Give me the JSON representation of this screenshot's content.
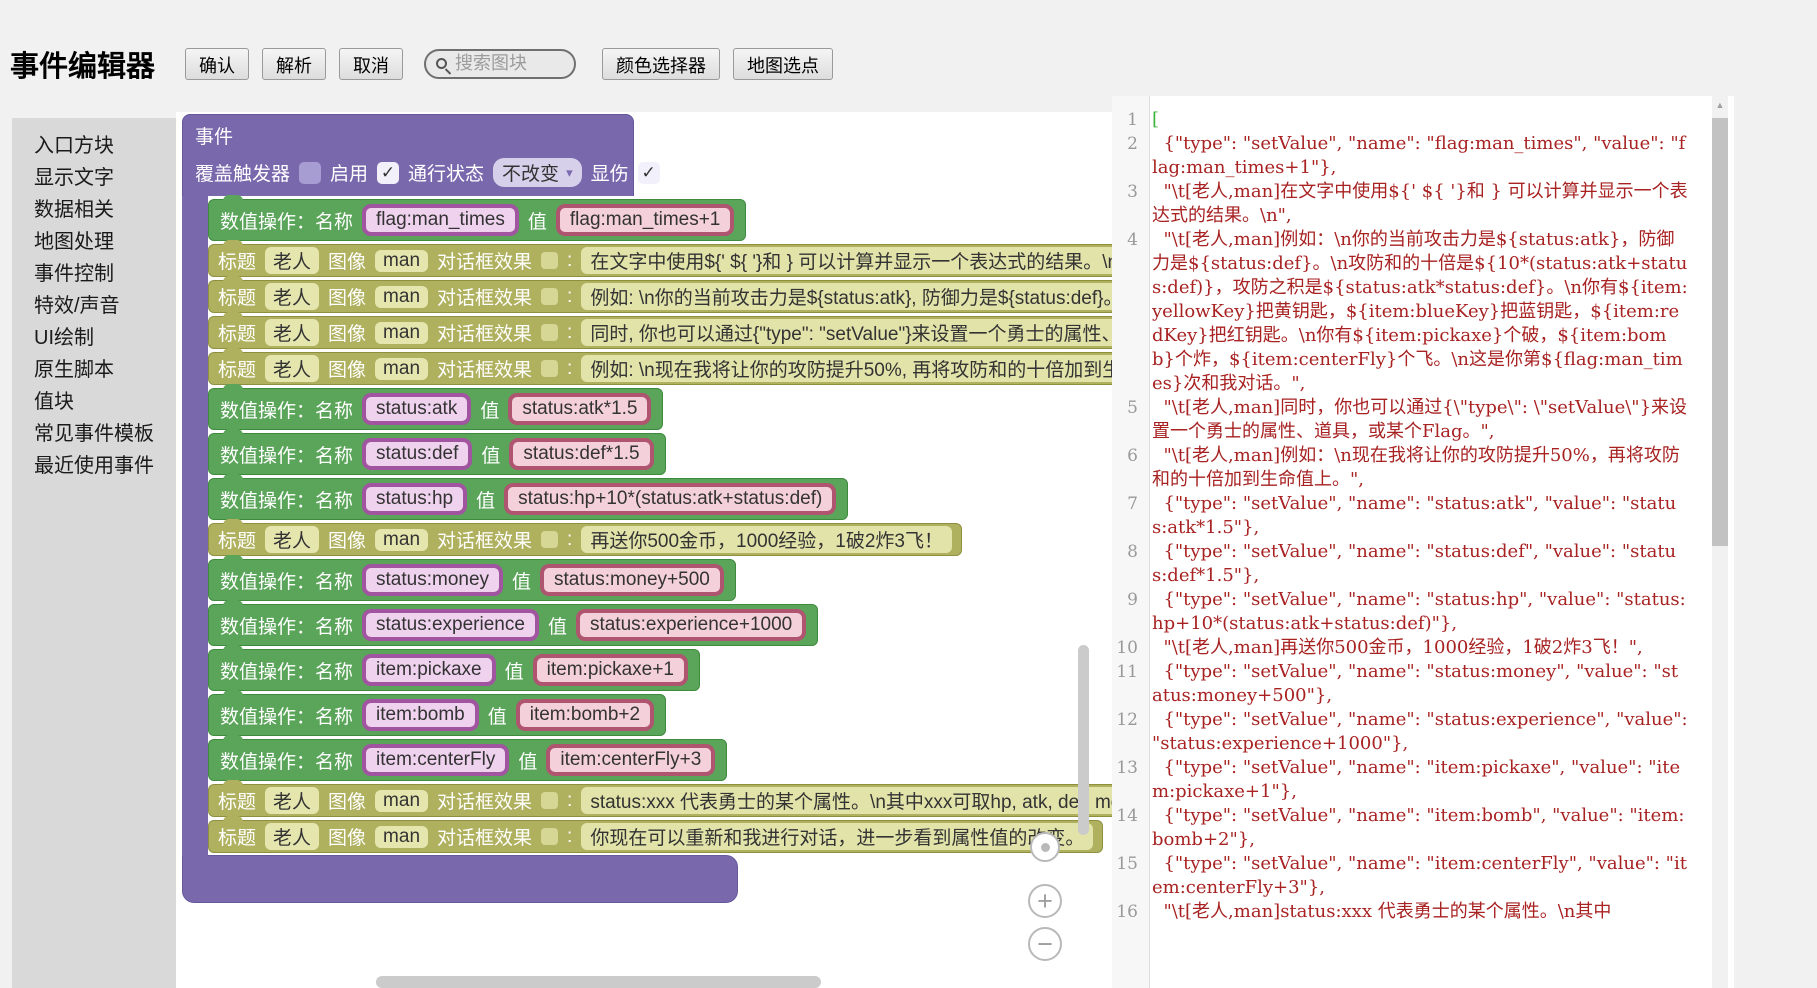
{
  "toolbar": {
    "title": "事件编辑器",
    "confirm": "确认",
    "parse": "解析",
    "cancel": "取消",
    "search_placeholder": "搜索图块",
    "color_picker": "颜色选择器",
    "map_pick": "地图选点"
  },
  "sidebar": {
    "items": [
      "入口方块",
      "显示文字",
      "数据相关",
      "地图处理",
      "事件控制",
      "特效/声音",
      "UI绘制",
      "原生脚本",
      "值块",
      "常见事件模板",
      "最近使用事件"
    ]
  },
  "workspace": {
    "event_block": {
      "title": "事件",
      "trigger_label": "覆盖触发器",
      "trigger_checked": false,
      "enable_label": "启用",
      "enable_checked": true,
      "pass_label": "通行状态",
      "pass_value": "不改变",
      "damage_label": "显伤",
      "damage_checked": true
    },
    "set_label": "数值操作：名称",
    "value_label": "值",
    "text_labels": {
      "title": "标题",
      "speaker": "老人",
      "image_label": "图像",
      "image": "man",
      "effect": "对话框效果",
      "colon": ":"
    },
    "blocks": [
      {
        "kind": "set",
        "name": "flag:man_times",
        "value": "flag:man_times+1"
      },
      {
        "kind": "text",
        "text": "在文字中使用${' ${ '}和 } 可以计算并显示一个表达式的结果。\\n"
      },
      {
        "kind": "text",
        "text": "例如: \\n你的当前攻击力是${status:atk}, 防御力是${status:def}。\\n攻防和的十倍是${10*(status:atk+status:def)}"
      },
      {
        "kind": "text",
        "text": "同时, 你也可以通过{\"type\": \"setValue\"}来设置一个勇士的属性、道具，或某个Flag。"
      },
      {
        "kind": "text",
        "text": "例如: \\n现在我将让你的攻防提升50%, 再将攻防和的十倍加到生命值上。"
      },
      {
        "kind": "set",
        "name": "status:atk",
        "value": "status:atk*1.5"
      },
      {
        "kind": "set",
        "name": "status:def",
        "value": "status:def*1.5"
      },
      {
        "kind": "set",
        "name": "status:hp",
        "value": "status:hp+10*(status:atk+status:def)"
      },
      {
        "kind": "text",
        "text": "再送你500金币，1000经验，1破2炸3飞！"
      },
      {
        "kind": "set",
        "name": "status:money",
        "value": "status:money+500"
      },
      {
        "kind": "set",
        "name": "status:experience",
        "value": "status:experience+1000"
      },
      {
        "kind": "set",
        "name": "item:pickaxe",
        "value": "item:pickaxe+1"
      },
      {
        "kind": "set",
        "name": "item:bomb",
        "value": "item:bomb+2"
      },
      {
        "kind": "set",
        "name": "item:centerFly",
        "value": "item:centerFly+3"
      },
      {
        "kind": "text",
        "text": "status:xxx 代表勇士的某个属性。\\n其中xxx可取hp, atk, def, money, experience等"
      },
      {
        "kind": "text",
        "text": "你现在可以重新和我进行对话，进一步看到属性值的改变。"
      }
    ]
  },
  "code": {
    "lines": [
      {
        "no": 1,
        "text": "[",
        "match": true
      },
      {
        "no": 2,
        "text": "  {\"type\": \"setValue\", \"name\": \"flag:man_times\", \"value\": \"flag:man_times+1\"},"
      },
      {
        "no": 3,
        "text": "  \"\\t[老人,man]在文字中使用${' ${ '}和 } 可以计算并显示一个表达式的结果。\\n\","
      },
      {
        "no": 4,
        "text": "  \"\\t[老人,man]例如：\\n你的当前攻击力是${status:atk}，防御力是${status:def}。\\n攻防和的十倍是${10*(status:atk+status:def)}，攻防之积是${status:atk*status:def}。\\n你有${item:yellowKey}把黄钥匙，${item:blueKey}把蓝钥匙，${item:redKey}把红钥匙。\\n你有${item:pickaxe}个破，${item:bomb}个炸，${item:centerFly}个飞。\\n这是你第${flag:man_times}次和我对话。\","
      },
      {
        "no": 5,
        "text": "  \"\\t[老人,man]同时，你也可以通过{\\\"type\\\": \\\"setValue\\\"}来设置一个勇士的属性、道具，或某个Flag。\","
      },
      {
        "no": 6,
        "text": "  \"\\t[老人,man]例如：\\n现在我将让你的攻防提升50%，再将攻防和的十倍加到生命值上。\","
      },
      {
        "no": 7,
        "text": "  {\"type\": \"setValue\", \"name\": \"status:atk\", \"value\": \"status:atk*1.5\"},"
      },
      {
        "no": 8,
        "text": "  {\"type\": \"setValue\", \"name\": \"status:def\", \"value\": \"status:def*1.5\"},"
      },
      {
        "no": 9,
        "text": "  {\"type\": \"setValue\", \"name\": \"status:hp\", \"value\": \"status:hp+10*(status:atk+status:def)\"},"
      },
      {
        "no": 10,
        "text": "  \"\\t[老人,man]再送你500金币，1000经验，1破2炸3飞！\","
      },
      {
        "no": 11,
        "text": "  {\"type\": \"setValue\", \"name\": \"status:money\", \"value\": \"status:money+500\"},"
      },
      {
        "no": 12,
        "text": "  {\"type\": \"setValue\", \"name\": \"status:experience\", \"value\": \"status:experience+1000\"},"
      },
      {
        "no": 13,
        "text": "  {\"type\": \"setValue\", \"name\": \"item:pickaxe\", \"value\": \"item:pickaxe+1\"},"
      },
      {
        "no": 14,
        "text": "  {\"type\": \"setValue\", \"name\": \"item:bomb\", \"value\": \"item:bomb+2\"},"
      },
      {
        "no": 15,
        "text": "  {\"type\": \"setValue\", \"name\": \"item:centerFly\", \"value\": \"item:centerFly+3\"},"
      },
      {
        "no": 16,
        "text": "  \"\\t[老人,man]status:xxx 代表勇士的某个属性。\\n其中"
      }
    ]
  },
  "glyphs": {
    "check": "✓",
    "dropdown_arrow": "▾",
    "up_arrow": "▲",
    "plus": "+",
    "minus": "−"
  },
  "colors": {
    "purple": "#7a68ad",
    "green": "#5aa55a",
    "khaki": "#afb15f",
    "name_border": "#a155a0",
    "value_border": "#b0556f",
    "code_string": "#a82222",
    "bracket_match": "#3cb33c"
  }
}
